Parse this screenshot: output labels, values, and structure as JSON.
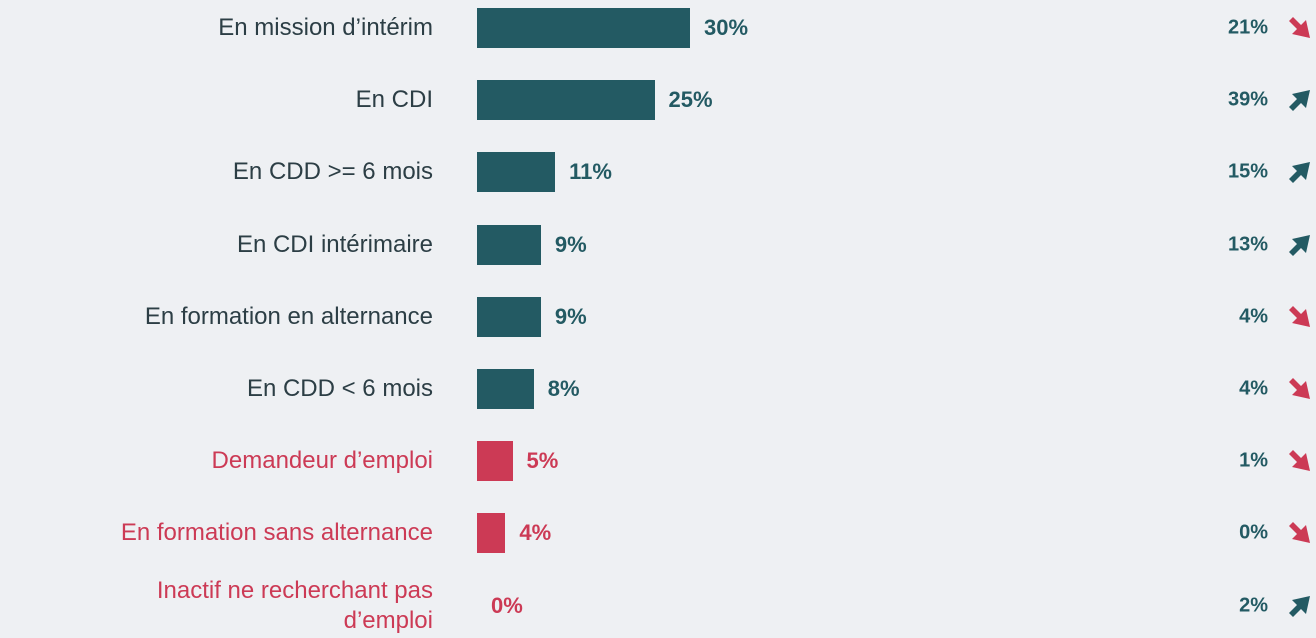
{
  "chart_data": {
    "type": "bar",
    "orientation": "horizontal",
    "categories": [
      "En mission d’intérim",
      "En CDI",
      "En CDD >=  6 mois",
      "En CDI intérimaire",
      "En formation en alternance",
      "En CDD < 6 mois",
      "Demandeur d’emploi",
      "En formation sans alternance",
      "Inactif ne recherchant pas\nd’emploi"
    ],
    "values": [
      30,
      25,
      11,
      9,
      9,
      8,
      5,
      4,
      0
    ],
    "value_labels": [
      "30%",
      "25%",
      "11%",
      "9%",
      "9%",
      "8%",
      "5%",
      "4%",
      "0%"
    ],
    "colors": [
      "#235a63",
      "#235a63",
      "#235a63",
      "#235a63",
      "#235a63",
      "#235a63",
      "#cc3a55",
      "#cc3a55",
      "#cc3a55"
    ],
    "comparison": {
      "values": [
        21,
        39,
        15,
        13,
        4,
        4,
        1,
        0,
        2
      ],
      "value_labels": [
        "21%",
        "39%",
        "15%",
        "13%",
        "4%",
        "4%",
        "1%",
        "0%",
        "2%"
      ],
      "trend": [
        "down",
        "up",
        "up",
        "up",
        "down",
        "down",
        "down",
        "down",
        "up"
      ],
      "trend_colors": {
        "up": "#235a63",
        "down": "#cc3a55"
      }
    }
  }
}
